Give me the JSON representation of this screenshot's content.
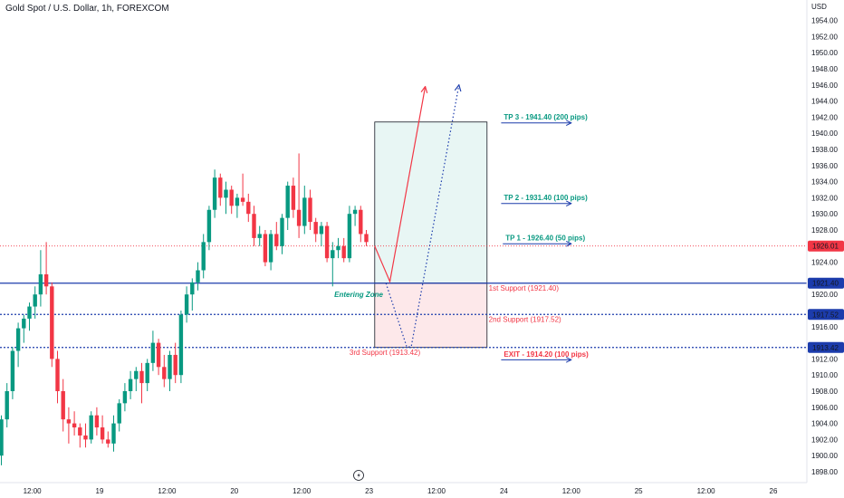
{
  "header": {
    "title": "Gold Spot / U.S. Dollar, 1h, FOREXCOM"
  },
  "colors": {
    "up": "#089981",
    "down": "#f23645",
    "blue": "#1c3cac",
    "red_line": "#f23645",
    "green_text": "#089981",
    "red_text": "#f23645",
    "axis_text": "#131722",
    "tag_blue": "#1c3cac",
    "tag_red": "#f23645",
    "zone_top": "#e8f6f4",
    "zone_bottom": "#fde8ea"
  },
  "chart_data": {
    "type": "candlestick",
    "currency": "USD",
    "ylim": [
      1896.9,
      1957.5
    ],
    "y_ticks": [
      1898,
      1900,
      1902,
      1904,
      1906,
      1908,
      1910,
      1912,
      1914,
      1916,
      1918,
      1920,
      1922,
      1924,
      1926,
      1928,
      1930,
      1932,
      1934,
      1936,
      1938,
      1940,
      1942,
      1944,
      1946,
      1948,
      1950,
      1952,
      1954
    ],
    "y_tick_labels": [
      "1898.00",
      "1900.00",
      "1902.00",
      "1904.00",
      "1906.00",
      "1908.00",
      "1910.00",
      "1912.00",
      "1914.00",
      "1916.00",
      "1918.00",
      "1920.00",
      "1922.00",
      "1924.00",
      "1926.00",
      "1928.00",
      "1930.00",
      "1932.00",
      "1934.00",
      "1936.00",
      "1938.00",
      "1940.00",
      "1942.00",
      "1944.00",
      "1946.00",
      "1948.00",
      "1950.00",
      "1952.00",
      "1954.00"
    ],
    "x_ticks": [
      {
        "label": "12:00",
        "bar": 5.5
      },
      {
        "label": "19",
        "bar": 17.5
      },
      {
        "label": "12:00",
        "bar": 29.5
      },
      {
        "label": "20",
        "bar": 41.5
      },
      {
        "label": "12:00",
        "bar": 53.5
      },
      {
        "label": "23",
        "bar": 65.5
      },
      {
        "label": "12:00",
        "bar": 77.5
      },
      {
        "label": "24",
        "bar": 89.5
      },
      {
        "label": "12:00",
        "bar": 101.5
      },
      {
        "label": "25",
        "bar": 113.5
      },
      {
        "label": "12:00",
        "bar": 125.5
      },
      {
        "label": "26",
        "bar": 137.5
      }
    ],
    "candles": [
      [
        1900.0,
        1905.0,
        1898.8,
        1904.5
      ],
      [
        1904.5,
        1909.0,
        1903.5,
        1908.0
      ],
      [
        1908.0,
        1913.5,
        1907.0,
        1913.0
      ],
      [
        1913.0,
        1916.5,
        1911.0,
        1915.8
      ],
      [
        1915.8,
        1917.5,
        1914.0,
        1917.0
      ],
      [
        1917.0,
        1919.0,
        1915.5,
        1918.5
      ],
      [
        1918.5,
        1921.0,
        1917.0,
        1920.0
      ],
      [
        1920.0,
        1925.5,
        1918.5,
        1922.5
      ],
      [
        1922.5,
        1926.5,
        1920.0,
        1921.0
      ],
      [
        1921.0,
        1921.5,
        1911.0,
        1912.0
      ],
      [
        1912.0,
        1913.0,
        1906.5,
        1908.0
      ],
      [
        1908.0,
        1909.5,
        1903.0,
        1904.5
      ],
      [
        1904.5,
        1906.0,
        1901.5,
        1904.0
      ],
      [
        1904.0,
        1905.5,
        1902.5,
        1903.5
      ],
      [
        1903.5,
        1904.0,
        1901.0,
        1902.5
      ],
      [
        1902.5,
        1904.0,
        1901.0,
        1902.0
      ],
      [
        1902.0,
        1905.5,
        1901.5,
        1905.0
      ],
      [
        1905.0,
        1906.0,
        1902.5,
        1903.5
      ],
      [
        1903.5,
        1905.0,
        1901.5,
        1902.0
      ],
      [
        1902.0,
        1903.0,
        1901.0,
        1901.5
      ],
      [
        1901.5,
        1905.0,
        1900.5,
        1904.0
      ],
      [
        1904.0,
        1907.0,
        1903.0,
        1906.5
      ],
      [
        1906.5,
        1909.0,
        1905.5,
        1908.0
      ],
      [
        1908.0,
        1910.5,
        1907.0,
        1909.5
      ],
      [
        1909.5,
        1911.0,
        1908.0,
        1910.5
      ],
      [
        1910.5,
        1911.5,
        1906.5,
        1909.0
      ],
      [
        1909.0,
        1912.0,
        1908.0,
        1911.5
      ],
      [
        1911.5,
        1915.5,
        1910.5,
        1914.0
      ],
      [
        1914.0,
        1914.5,
        1910.0,
        1911.0
      ],
      [
        1911.0,
        1912.5,
        1908.5,
        1909.5
      ],
      [
        1909.5,
        1913.0,
        1908.0,
        1912.5
      ],
      [
        1912.5,
        1914.0,
        1909.0,
        1910.0
      ],
      [
        1910.0,
        1918.0,
        1909.0,
        1917.5
      ],
      [
        1917.5,
        1921.0,
        1916.5,
        1920.0
      ],
      [
        1920.0,
        1922.0,
        1918.0,
        1921.5
      ],
      [
        1921.5,
        1924.0,
        1920.5,
        1923.0
      ],
      [
        1923.0,
        1927.5,
        1922.0,
        1926.5
      ],
      [
        1926.5,
        1931.0,
        1925.5,
        1930.5
      ],
      [
        1930.5,
        1935.5,
        1929.5,
        1934.5
      ],
      [
        1934.5,
        1935.0,
        1931.0,
        1932.0
      ],
      [
        1932.0,
        1934.0,
        1930.0,
        1933.0
      ],
      [
        1933.0,
        1933.5,
        1930.0,
        1931.0
      ],
      [
        1931.0,
        1932.5,
        1929.5,
        1932.0
      ],
      [
        1932.0,
        1935.0,
        1931.0,
        1931.5
      ],
      [
        1931.5,
        1932.5,
        1929.0,
        1930.0
      ],
      [
        1930.0,
        1931.0,
        1926.0,
        1927.0
      ],
      [
        1927.0,
        1928.5,
        1926.0,
        1927.5
      ],
      [
        1927.5,
        1928.0,
        1923.5,
        1924.0
      ],
      [
        1924.0,
        1928.0,
        1923.0,
        1927.5
      ],
      [
        1927.5,
        1929.0,
        1925.5,
        1926.0
      ],
      [
        1926.0,
        1930.0,
        1925.0,
        1929.5
      ],
      [
        1929.5,
        1934.0,
        1928.0,
        1933.5
      ],
      [
        1933.5,
        1934.5,
        1929.5,
        1930.5
      ],
      [
        1930.5,
        1937.5,
        1927.0,
        1928.5
      ],
      [
        1928.5,
        1933.5,
        1927.5,
        1932.0
      ],
      [
        1932.0,
        1933.0,
        1928.0,
        1929.0
      ],
      [
        1929.0,
        1929.5,
        1926.5,
        1927.5
      ],
      [
        1927.5,
        1929.0,
        1926.0,
        1928.5
      ],
      [
        1928.5,
        1929.0,
        1924.0,
        1924.5
      ],
      [
        1924.5,
        1926.5,
        1921.0,
        1925.5
      ],
      [
        1925.5,
        1927.0,
        1924.5,
        1926.0
      ],
      [
        1926.0,
        1927.0,
        1924.0,
        1924.5
      ],
      [
        1924.5,
        1931.0,
        1924.0,
        1930.0
      ],
      [
        1930.0,
        1931.0,
        1928.5,
        1930.5
      ],
      [
        1930.5,
        1931.0,
        1926.5,
        1927.5
      ],
      [
        1927.5,
        1928.0,
        1926.0,
        1926.5
      ]
    ],
    "price_lines": [
      {
        "name": "last-price-line",
        "value": 1926.01,
        "label": "1926.01",
        "style": "dotted-red"
      },
      {
        "name": "first-support-line",
        "value": 1921.4,
        "label": "1921.40",
        "style": "solid-blue"
      },
      {
        "name": "second-support-line",
        "value": 1917.52,
        "label": "1917.52",
        "style": "dotted-blue"
      },
      {
        "name": "third-support-line",
        "value": 1913.42,
        "label": "1913.42",
        "style": "dotted-blue"
      }
    ],
    "hidden_tick_labels": [
      "1922.00",
      "1918.00",
      "1914.00"
    ],
    "zone": {
      "bar_start": 66.5,
      "bar_end": 86.5,
      "top": 1941.4,
      "mid": 1921.4,
      "bottom": 1913.42
    },
    "projection_solid": [
      [
        66.5,
        1926.0
      ],
      [
        69.2,
        1921.6
      ],
      [
        75.5,
        1945.8
      ]
    ],
    "projection_dotted": [
      [
        68.5,
        1921.4
      ],
      [
        72.2,
        1913.5
      ],
      [
        73.0,
        1913.5
      ],
      [
        81.5,
        1946.0
      ]
    ],
    "annotations": [
      {
        "name": "tp3-label",
        "text": "TP 3 - 1941.40 (200 pips)",
        "bar": 89.5,
        "y": 1941.4,
        "color": "green",
        "bold": true,
        "arrow_to_bar": 101.5
      },
      {
        "name": "tp2-label",
        "text": "TP 2 - 1931.40 (100 pips)",
        "bar": 89.5,
        "y": 1931.4,
        "color": "green",
        "bold": true,
        "arrow_to_bar": 101.5
      },
      {
        "name": "tp1-label",
        "text": "TP 1 - 1926.40 (50 pips)",
        "bar": 89.8,
        "y": 1926.4,
        "color": "green",
        "bold": true,
        "arrow_to_bar": 101.5
      },
      {
        "name": "first-support-label",
        "text": "1st Support (1921.40)",
        "bar": 86.8,
        "y": 1920.2,
        "color": "red",
        "bold": false
      },
      {
        "name": "second-support-label",
        "text": "2nd Support (1917.52)",
        "bar": 86.8,
        "y": 1916.3,
        "color": "red",
        "bold": false
      },
      {
        "name": "third-support-label",
        "text": "3rd Support (1913.42)",
        "bar": 62.0,
        "y": 1912.2,
        "color": "red",
        "bold": false
      },
      {
        "name": "exit-label",
        "text": "EXIT - 1914.20 (100 pips)",
        "bar": 89.5,
        "y": 1912.0,
        "color": "red",
        "bold": true,
        "arrow_to_bar": 101.5
      },
      {
        "name": "entering-zone-label",
        "text": "Entering Zone",
        "bar": 59.3,
        "y": 1919.4,
        "color": "green",
        "bold": true,
        "italic": true
      }
    ]
  }
}
